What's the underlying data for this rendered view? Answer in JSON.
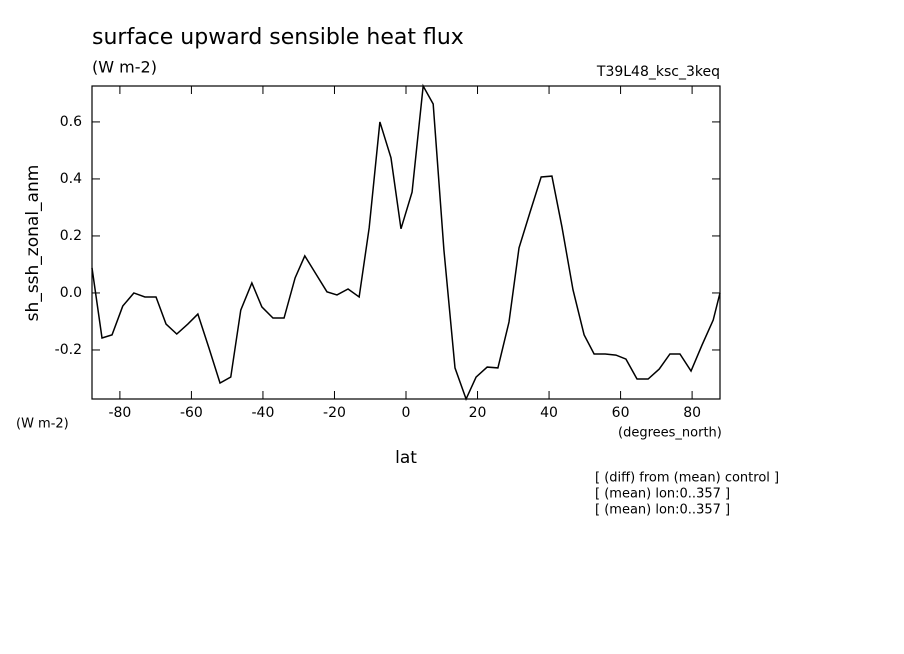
{
  "chart_data": {
    "type": "line",
    "title": "surface upward sensible heat flux",
    "subtitle": "(W m-2)",
    "run_label": "T39L48_ksc_3keq",
    "y_label": "sh_ssh_zonal_anm",
    "y_units": "(W m-2)",
    "x_units": "(degrees_north)",
    "x_label": "lat",
    "notes": [
      "[ (diff) from (mean) control ]",
      "[ (mean) lon:0..357 ]",
      "[ (mean) lon:0..357 ]"
    ],
    "x": [
      -87.8,
      -85.0,
      -82.2,
      -79.2,
      -76.1,
      -73.0,
      -69.9,
      -67.1,
      -64.1,
      -61.0,
      -58.2,
      -55.1,
      -52.0,
      -49.0,
      -46.2,
      -43.1,
      -40.3,
      -37.2,
      -34.1,
      -31.0,
      -28.3,
      -25.2,
      -22.1,
      -19.3,
      -16.2,
      -13.1,
      -10.3,
      -7.3,
      -4.2,
      -1.4,
      1.7,
      4.8,
      7.6,
      10.6,
      13.7,
      16.8,
      19.6,
      22.7,
      25.7,
      28.8,
      31.6,
      34.7,
      37.8,
      40.8,
      43.6,
      46.7,
      49.8,
      52.6,
      55.7,
      58.7,
      61.5,
      64.6,
      67.7,
      70.8,
      73.8,
      76.6,
      79.7,
      82.8,
      85.9,
      87.8
    ],
    "series": [
      {
        "color": "#000000",
        "values": [
          0.088,
          -0.158,
          -0.147,
          -0.046,
          0.0,
          -0.014,
          -0.014,
          -0.109,
          -0.144,
          -0.109,
          -0.074,
          -0.193,
          -0.316,
          -0.295,
          -0.06,
          0.035,
          -0.049,
          -0.088,
          -0.088,
          0.053,
          0.13,
          0.067,
          0.004,
          -0.007,
          0.014,
          -0.014,
          0.228,
          0.6,
          0.474,
          0.225,
          0.354,
          0.726,
          0.663,
          0.151,
          -0.263,
          -0.372,
          -0.295,
          -0.26,
          -0.263,
          -0.102,
          0.158,
          0.284,
          0.407,
          0.41,
          0.232,
          0.011,
          -0.147,
          -0.214,
          -0.214,
          -0.218,
          -0.232,
          -0.302,
          -0.302,
          -0.267,
          -0.214,
          -0.214,
          -0.274,
          -0.182,
          -0.095,
          0.0
        ]
      }
    ],
    "xlim": [
      -87.8,
      87.8
    ],
    "ylim": [
      -0.372,
      0.726
    ],
    "xticks": [
      -80,
      -60,
      -40,
      -20,
      0,
      20,
      40,
      60,
      80
    ],
    "yticks": [
      -0.2,
      {
        "value": 0,
        "label": "0.0"
      },
      0.2,
      0.4,
      0.6
    ]
  }
}
